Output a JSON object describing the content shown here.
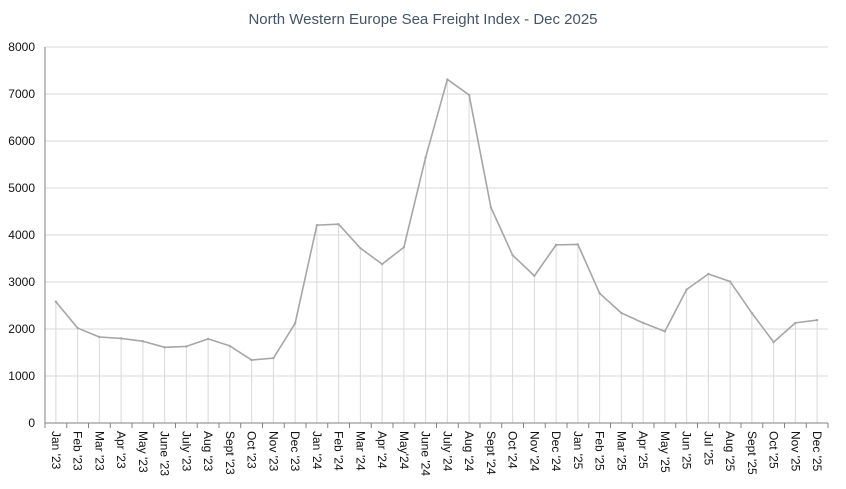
{
  "chart_data": {
    "type": "line",
    "title": "North Western Europe Sea Freight Index - Dec 2025",
    "xlabel": "",
    "ylabel": "",
    "ylim": [
      0,
      8000
    ],
    "yticks": [
      0,
      1000,
      2000,
      3000,
      4000,
      5000,
      6000,
      7000,
      8000
    ],
    "grid": "horizontal",
    "drop_lines": true,
    "colors": {
      "line": "#a6a6a6",
      "gridline": "#d9d9d9",
      "axis": "#808080",
      "title": "#44546a",
      "tick_text": "#111111"
    },
    "categories": [
      "Jan '23",
      "Feb '23",
      "Mar '23",
      "Apr '23",
      "May '23",
      "June '23",
      "July '23",
      "Aug '23",
      "Sept '23",
      "Oct '23",
      "Nov '23",
      "Dec '23",
      "Jan '24",
      "Feb '24",
      "Mar '24",
      "Apr '24",
      "May'24",
      "June '24",
      "July '24",
      "Aug '24",
      "Sept '24",
      "Oct '24",
      "Nov '24",
      "Dec '24",
      "Jan '25",
      "Feb '25",
      "Mar '25",
      "Apr '25",
      "May '25",
      "Jun '25",
      "Jul '25",
      "Aug '25",
      "Sept '25",
      "Oct '25",
      "Nov '25",
      "Dec '25"
    ],
    "values": [
      2580,
      2020,
      1830,
      1800,
      1740,
      1610,
      1630,
      1790,
      1640,
      1340,
      1380,
      2120,
      4210,
      4230,
      3720,
      3380,
      3740,
      5650,
      7310,
      6980,
      4590,
      3570,
      3130,
      3790,
      3800,
      2760,
      2340,
      2130,
      1950,
      2840,
      3170,
      3010,
      2340,
      1720,
      2130,
      2190
    ]
  }
}
